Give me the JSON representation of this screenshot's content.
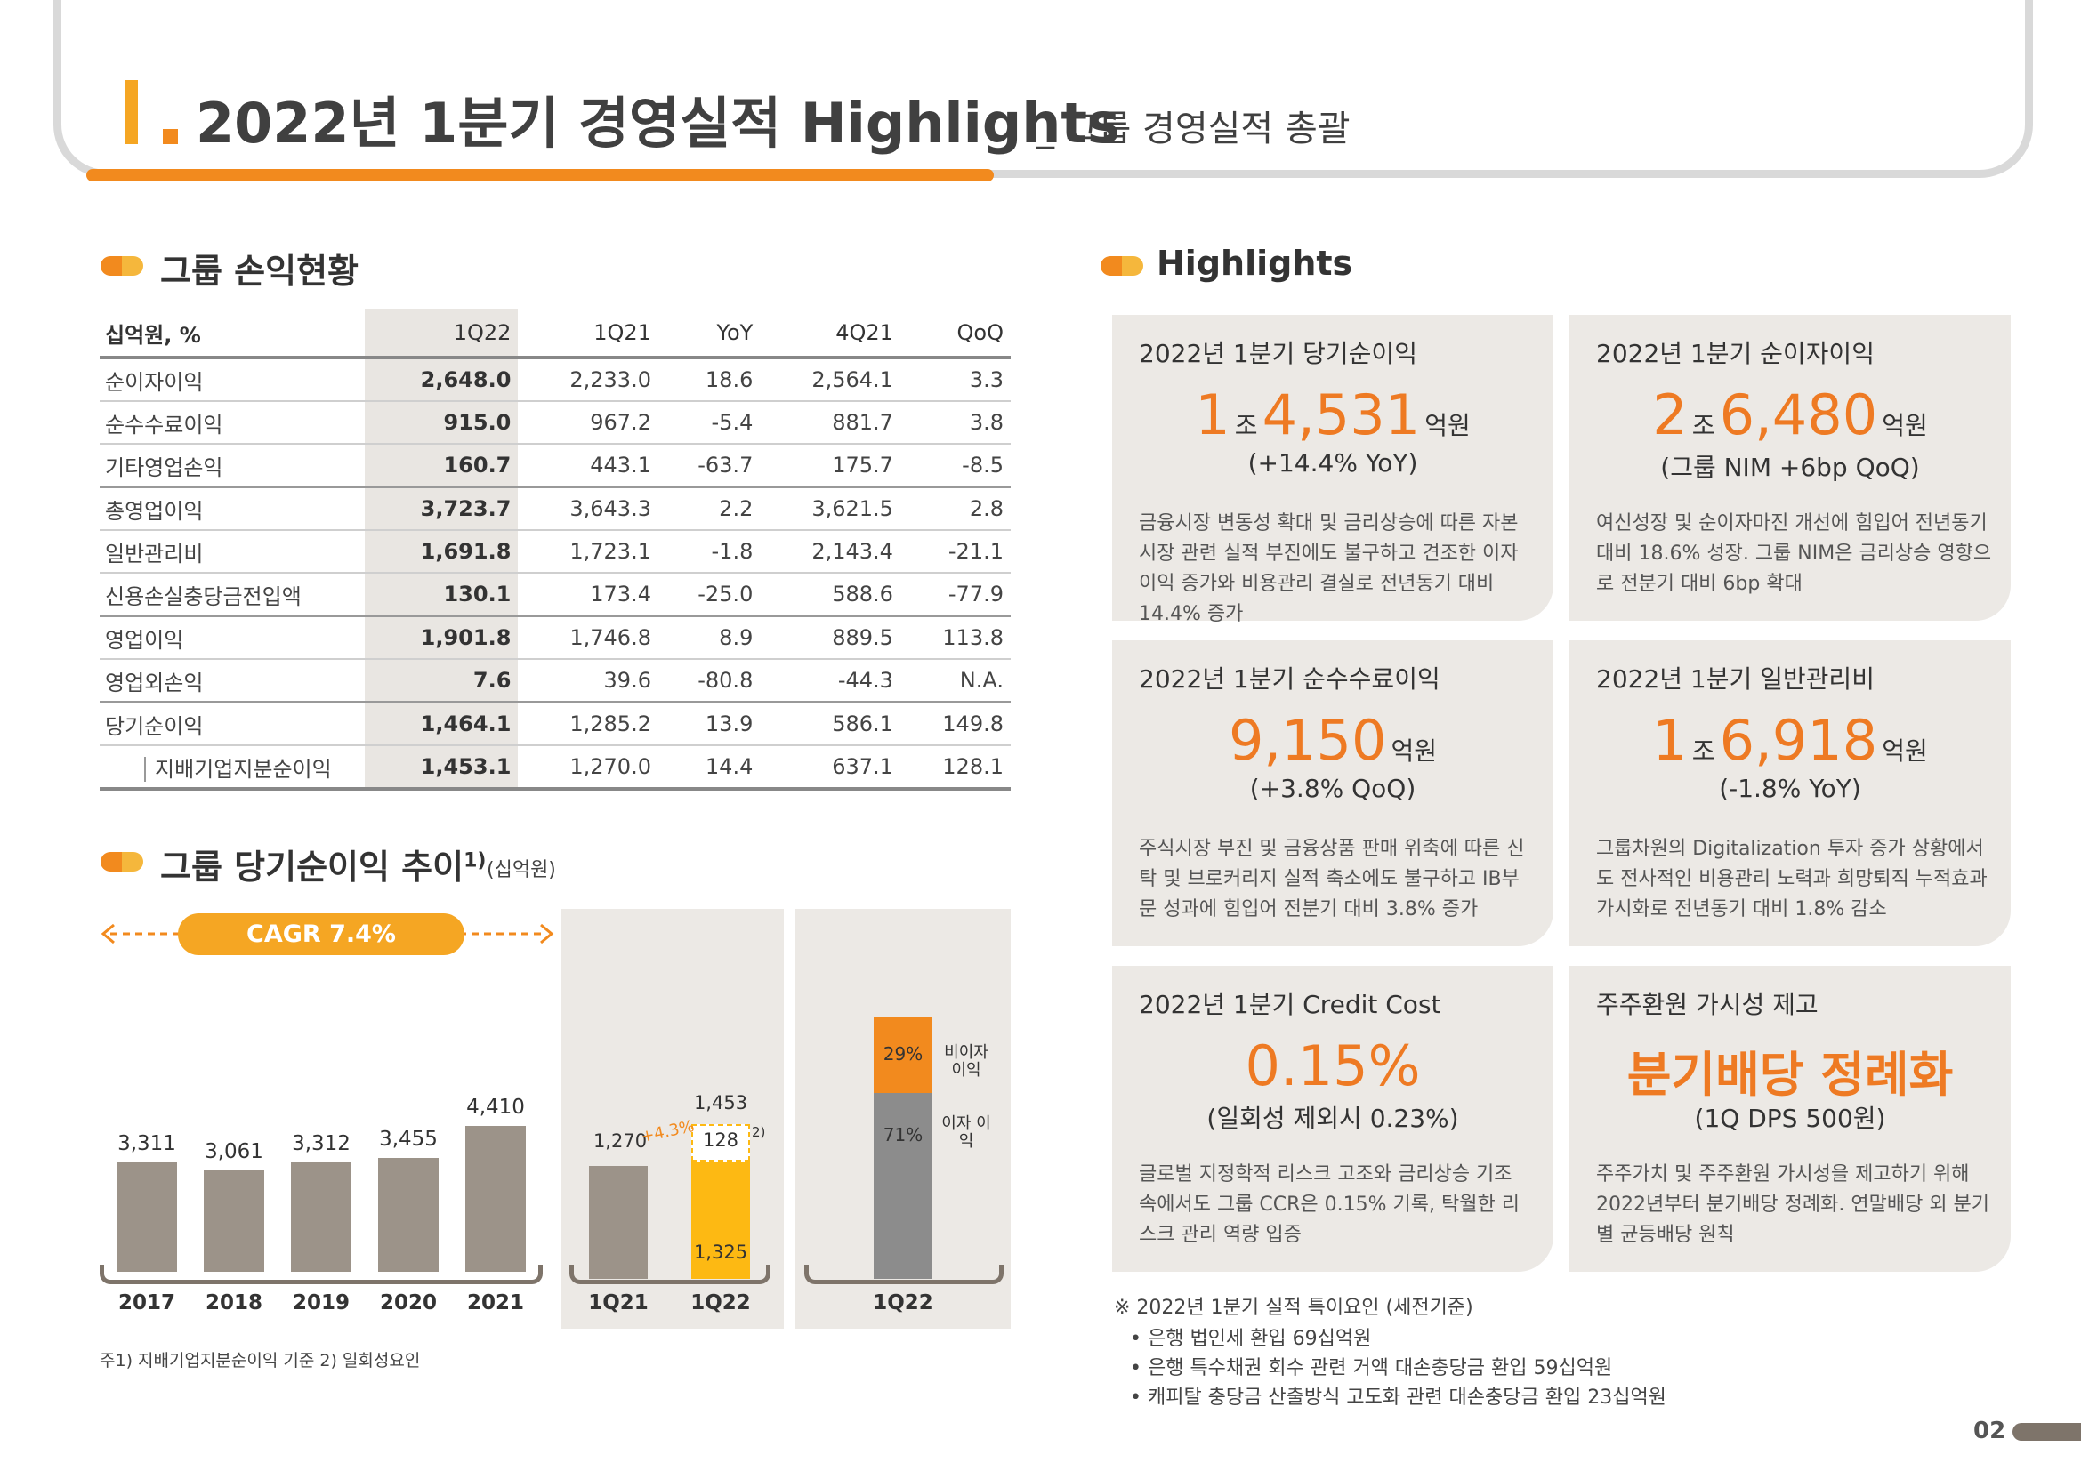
{
  "header": {
    "title": "2022년 1분기 경영실적 Highlights",
    "subtitle": "_ 그룹 경영실적 총괄"
  },
  "pl_section": {
    "title": "그룹 손익현황",
    "columns": [
      "십억원, %",
      "1Q22",
      "1Q21",
      "YoY",
      "4Q21",
      "QoQ"
    ],
    "rows": [
      {
        "label": "순이자이익",
        "v": [
          "2,648.0",
          "2,233.0",
          "18.6",
          "2,564.1",
          "3.3"
        ]
      },
      {
        "label": "순수수료이익",
        "v": [
          "915.0",
          "967.2",
          "-5.4",
          "881.7",
          "3.8"
        ]
      },
      {
        "label": "기타영업손익",
        "v": [
          "160.7",
          "443.1",
          "-63.7",
          "175.7",
          "-8.5"
        ]
      },
      {
        "label": "총영업이익",
        "v": [
          "3,723.7",
          "3,643.3",
          "2.2",
          "3,621.5",
          "2.8"
        ]
      },
      {
        "label": "일반관리비",
        "v": [
          "1,691.8",
          "1,723.1",
          "-1.8",
          "2,143.4",
          "-21.1"
        ]
      },
      {
        "label": "신용손실충당금전입액",
        "v": [
          "130.1",
          "173.4",
          "-25.0",
          "588.6",
          "-77.9"
        ]
      },
      {
        "label": "영업이익",
        "v": [
          "1,901.8",
          "1,746.8",
          "8.9",
          "889.5",
          "113.8"
        ]
      },
      {
        "label": "영업외손익",
        "v": [
          "7.6",
          "39.6",
          "-80.8",
          "-44.3",
          "N.A."
        ]
      },
      {
        "label": "당기순이익",
        "v": [
          "1,464.1",
          "1,285.2",
          "13.9",
          "586.1",
          "149.8"
        ]
      },
      {
        "label": "지배기업지분순이익",
        "v": [
          "1,453.1",
          "1,270.0",
          "14.4",
          "637.1",
          "128.1"
        ]
      }
    ]
  },
  "trend_section": {
    "title": "그룹 당기순이익 추이",
    "sup": "1)",
    "unit": "(십억원)",
    "cagr": "CAGR 7.4%",
    "footnote": "주1) 지배기업지분순이익 기준     2) 일회성요인"
  },
  "chart_data": [
    {
      "type": "bar",
      "categories": [
        "2017",
        "2018",
        "2019",
        "2020",
        "2021"
      ],
      "values": [
        3311,
        3061,
        3312,
        3455,
        4410
      ],
      "labels": [
        "3,311",
        "3,061",
        "3,312",
        "3,455",
        "4,410"
      ],
      "annotation": "CAGR 7.4%"
    },
    {
      "type": "bar",
      "categories": [
        "1Q21",
        "1Q22"
      ],
      "series": [
        {
          "values": [
            1270,
            1325
          ]
        },
        {
          "values": [
            0,
            128
          ]
        }
      ],
      "labels": {
        "1Q21": "1,270",
        "1Q22_total": "1,453",
        "1Q22_base": "1,325",
        "1Q22_top": "128",
        "growth": "+4.3%",
        "note": "2)"
      }
    },
    {
      "type": "bar",
      "categories": [
        "1Q22"
      ],
      "series": [
        {
          "name": "이자 이익",
          "values": [
            71
          ],
          "label": "71%"
        },
        {
          "name": "비이자 이익",
          "values": [
            29
          ],
          "label": "29%"
        }
      ]
    }
  ],
  "highlights": {
    "title": "Highlights",
    "cards": [
      {
        "title": "2022년 1분기 당기순이익",
        "n1": "1",
        "u1": "조",
        "n2": "4,531",
        "u2": "억원",
        "sub": "(+14.4% YoY)",
        "desc": "금융시장 변동성 확대 및 금리상승에 따른 자본시장 관련 실적 부진에도 불구하고 견조한 이자이익 증가와 비용관리 결실로 전년동기 대비 14.4% 증가"
      },
      {
        "title": "2022년 1분기 순이자이익",
        "n1": "2",
        "u1": "조",
        "n2": "6,480",
        "u2": "억원",
        "sub": "(그룹 NIM +6bp QoQ)",
        "desc": "여신성장 및 순이자마진 개선에 힘입어 전년동기 대비 18.6% 성장. 그룹 NIM은 금리상승 영향으로 전분기 대비 6bp 확대"
      },
      {
        "title": "2022년 1분기 순수수료이익",
        "n1": "",
        "u1": "",
        "n2": "9,150",
        "u2": "억원",
        "sub": "(+3.8% QoQ)",
        "desc": "주식시장 부진 및 금융상품 판매 위축에 따른 신탁 및 브로커리지 실적 축소에도 불구하고 IB부문 성과에 힘입어 전분기 대비 3.8% 증가"
      },
      {
        "title": "2022년 1분기 일반관리비",
        "n1": "1",
        "u1": "조",
        "n2": "6,918",
        "u2": "억원",
        "sub": "(-1.8% YoY)",
        "desc": "그룹차원의 Digitalization 투자 증가 상황에서도 전사적인 비용관리 노력과 희망퇴직 누적효과 가시화로 전년동기 대비 1.8% 감소"
      },
      {
        "title": "2022년 1분기 Credit Cost",
        "n1": "",
        "u1": "",
        "n2": "0.15%",
        "u2": "",
        "sub": "(일회성 제외시 0.23%)",
        "desc": "글로벌 지정학적 리스크 고조와 금리상승 기조 속에서도 그룹 CCR은 0.15% 기록, 탁월한 리스크 관리 역량 입증"
      },
      {
        "title": "주주환원 가시성 제고",
        "n1": "",
        "u1": "",
        "n2": "분기배당 정례화",
        "u2": "",
        "sub": "(1Q DPS 500원)",
        "desc": "주주가치 및 주주환원 가시성을 제고하기 위해 2022년부터 분기배당 정례화. 연말배당 외 분기별 균등배당 원칙"
      }
    ]
  },
  "notes": {
    "heading": "※ 2022년 1분기 실적 특이요인 (세전기준)",
    "items": [
      "• 은행 법인세 환입 69십억원",
      "• 은행 특수채권 회수 관련 거액 대손충당금 환입 59십억원",
      "• 캐피탈 충당금 산출방식 고도화 관련 대손충당금 환입 23십억원"
    ]
  },
  "page_number": "02",
  "colors": {
    "accent": "#ee7a23",
    "accent_light": "#f5b73c",
    "bar": "#9c9389",
    "panel": "#ece9e5",
    "yellow": "#fdb913",
    "gray": "#8c8c8c"
  }
}
